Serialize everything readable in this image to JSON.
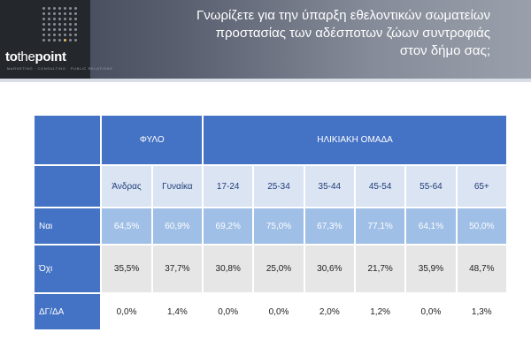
{
  "header": {
    "title_lines": [
      "Γνωρίζετε για την ύπαρξη εθελοντικών σωματείων",
      "προστασίας των αδέσποτων ζώων συντροφιάς",
      "στον δήμο σας;"
    ],
    "logo_text_bold_1": "to",
    "logo_text_light": "the",
    "logo_text_bold_2": "point",
    "logo_subtitle": "MARKETING · CONSULTING · PUBLIC RELATIONS"
  },
  "table": {
    "groups": {
      "gender": "ΦΥΛΟ",
      "age": "ΗΛΙΚΙΑΚΗ ΟΜΑΔΑ"
    },
    "columns": [
      "Άνδρας",
      "Γυναίκα",
      "17-24",
      "25-34",
      "35-44",
      "45-54",
      "55-64",
      "65+"
    ],
    "rows": [
      {
        "label": "Ναι",
        "values": [
          "64,5%",
          "60,9%",
          "69,2%",
          "75,0%",
          "67,3%",
          "77,1%",
          "64,1%",
          "50,0%"
        ]
      },
      {
        "label": "Όχι",
        "values": [
          "35,5%",
          "37,7%",
          "30,8%",
          "25,0%",
          "30,6%",
          "21,7%",
          "35,9%",
          "48,7%"
        ]
      },
      {
        "label": "ΔΓ/ΔΑ",
        "values": [
          "0,0%",
          "1,4%",
          "0,0%",
          "0,0%",
          "2,0%",
          "1,2%",
          "0,0%",
          "1,3%"
        ]
      }
    ]
  },
  "colors": {
    "header_blue": "#4472c4",
    "highlight_blue": "#9fbfe6",
    "gray_row": "#e6e6e6"
  }
}
